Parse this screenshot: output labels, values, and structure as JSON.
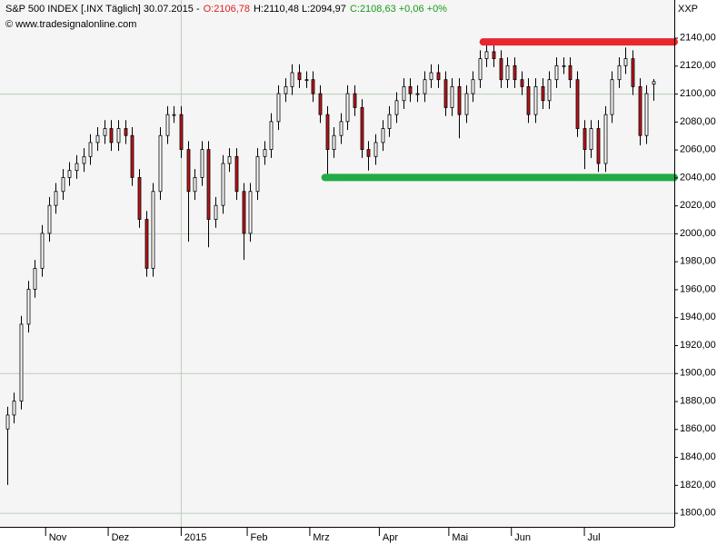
{
  "chart_data": {
    "type": "candlestick",
    "header": [
      {
        "text": "S&P 500 INDEX [.INX  Täglich] 30.07.2015 -",
        "color": "#000000"
      },
      {
        "text": "O:2106,78",
        "color": "#e02020"
      },
      {
        "text": "H:2110,48 L:2094,97",
        "color": "#000000"
      },
      {
        "text": "C:2108,63 +0,06 +0%",
        "color": "#1a9a1a"
      }
    ],
    "source": "© www.tradesignalonline.com",
    "symbol": "XXP",
    "up_color": "#ffffff",
    "down_color": "#c0141a",
    "x": [
      0,
      2,
      4,
      6,
      8,
      10,
      12,
      14,
      16,
      18,
      20,
      22,
      24,
      26,
      28,
      30,
      32,
      34,
      36,
      38,
      40,
      42,
      44,
      46,
      48,
      50,
      52,
      54,
      56,
      58,
      60,
      62,
      64,
      66,
      68,
      70,
      72,
      74,
      76,
      78,
      80,
      82,
      84,
      86,
      88,
      90,
      92,
      94,
      96,
      98,
      100,
      102,
      104,
      106,
      108,
      110,
      112,
      114,
      116,
      118,
      120,
      122,
      124,
      126,
      128,
      130,
      132,
      134,
      136,
      138,
      140,
      142,
      144,
      146,
      148,
      150,
      152,
      154,
      156,
      158,
      160,
      162,
      164,
      166,
      168,
      170,
      172,
      174,
      176,
      178,
      180,
      182,
      184,
      186
    ],
    "open": [
      1860,
      1870,
      1880,
      1935,
      1960,
      1975,
      2000,
      2020,
      2030,
      2040,
      2045,
      2050,
      2055,
      2065,
      2070,
      2075,
      2065,
      2075,
      2070,
      2040,
      2010,
      1975,
      2030,
      2070,
      2085,
      2085,
      2060,
      2030,
      2040,
      2060,
      2010,
      2020,
      2050,
      2055,
      2030,
      2000,
      2030,
      2055,
      2060,
      2080,
      2100,
      2105,
      2115,
      2110,
      2110,
      2100,
      2085,
      2060,
      2070,
      2080,
      2100,
      2090,
      2060,
      2055,
      2065,
      2075,
      2085,
      2095,
      2105,
      2100,
      2100,
      2110,
      2115,
      2110,
      2090,
      2105,
      2085,
      2100,
      2110,
      2125,
      2130,
      2125,
      2110,
      2120,
      2110,
      2105,
      2085,
      2105,
      2095,
      2110,
      2120,
      2120,
      2110,
      2075,
      2060,
      2075,
      2050,
      2085,
      2110,
      2120,
      2125,
      2105,
      2070,
      2106.78
    ],
    "high": [
      1876,
      1886,
      1941,
      1966,
      1981,
      2006,
      2026,
      2036,
      2046,
      2051,
      2056,
      2061,
      2071,
      2076,
      2081,
      2081,
      2081,
      2081,
      2076,
      2046,
      2016,
      2036,
      2076,
      2091,
      2091,
      2091,
      2066,
      2046,
      2066,
      2066,
      2026,
      2056,
      2061,
      2061,
      2036,
      2036,
      2061,
      2066,
      2086,
      2106,
      2111,
      2121,
      2121,
      2116,
      2116,
      2106,
      2091,
      2076,
      2086,
      2106,
      2106,
      2096,
      2066,
      2071,
      2081,
      2091,
      2101,
      2111,
      2111,
      2106,
      2116,
      2121,
      2121,
      2116,
      2111,
      2111,
      2106,
      2116,
      2131,
      2135,
      2135,
      2131,
      2126,
      2126,
      2116,
      2111,
      2111,
      2111,
      2116,
      2126,
      2126,
      2126,
      2116,
      2081,
      2081,
      2081,
      2091,
      2116,
      2126,
      2133,
      2131,
      2111,
      2106,
      2110.48
    ],
    "low": [
      1820,
      1864,
      1874,
      1929,
      1954,
      1969,
      1994,
      2014,
      2024,
      2034,
      2039,
      2044,
      2049,
      2059,
      2064,
      2059,
      2059,
      2064,
      2034,
      2004,
      1969,
      1969,
      2024,
      2064,
      2079,
      2054,
      1994,
      2024,
      2034,
      1990,
      2004,
      2014,
      2044,
      2024,
      1981,
      1994,
      2024,
      2049,
      2054,
      2074,
      2094,
      2099,
      2104,
      2104,
      2094,
      2079,
      2042,
      2054,
      2064,
      2074,
      2084,
      2054,
      2045,
      2049,
      2059,
      2069,
      2079,
      2089,
      2094,
      2094,
      2094,
      2104,
      2104,
      2084,
      2084,
      2068,
      2079,
      2094,
      2104,
      2119,
      2119,
      2104,
      2104,
      2104,
      2099,
      2079,
      2079,
      2089,
      2089,
      2104,
      2114,
      2104,
      2069,
      2046,
      2054,
      2044,
      2044,
      2079,
      2104,
      2114,
      2099,
      2063,
      2064,
      2094.97
    ],
    "close": [
      1870,
      1880,
      1935,
      1960,
      1975,
      2000,
      2020,
      2030,
      2040,
      2045,
      2050,
      2055,
      2065,
      2070,
      2075,
      2065,
      2075,
      2070,
      2040,
      2010,
      1975,
      2030,
      2070,
      2085,
      2085,
      2060,
      2030,
      2040,
      2060,
      2010,
      2020,
      2050,
      2055,
      2030,
      2000,
      2030,
      2055,
      2060,
      2080,
      2100,
      2105,
      2115,
      2110,
      2110,
      2100,
      2085,
      2060,
      2070,
      2080,
      2100,
      2090,
      2060,
      2055,
      2065,
      2075,
      2085,
      2095,
      2105,
      2100,
      2100,
      2110,
      2115,
      2110,
      2090,
      2105,
      2085,
      2100,
      2110,
      2125,
      2130,
      2125,
      2110,
      2120,
      2110,
      2105,
      2085,
      2105,
      2095,
      2110,
      2120,
      2120,
      2110,
      2075,
      2060,
      2075,
      2050,
      2085,
      2110,
      2120,
      2125,
      2105,
      2070,
      2100,
      2108.63
    ],
    "xlim": [
      -2,
      192
    ],
    "xticks": [
      {
        "value": 11,
        "label": "Nov"
      },
      {
        "value": 29,
        "label": "Dez"
      },
      {
        "value": 50,
        "label": "2015"
      },
      {
        "value": 69,
        "label": "Feb"
      },
      {
        "value": 87,
        "label": "Mrz"
      },
      {
        "value": 107,
        "label": "Apr"
      },
      {
        "value": 127,
        "label": "Mai"
      },
      {
        "value": 145,
        "label": "Jun"
      },
      {
        "value": 166,
        "label": "Jul"
      }
    ],
    "xgrid": [
      50
    ],
    "ylim": [
      1790,
      2167
    ],
    "yticks": [
      {
        "value": 1800,
        "label": "1800,00"
      },
      {
        "value": 1820,
        "label": "1820,00"
      },
      {
        "value": 1840,
        "label": "1840,00"
      },
      {
        "value": 1860,
        "label": "1860,00"
      },
      {
        "value": 1880,
        "label": "1880,00"
      },
      {
        "value": 1900,
        "label": "1900,00"
      },
      {
        "value": 1920,
        "label": "1920,00"
      },
      {
        "value": 1940,
        "label": "1940,00"
      },
      {
        "value": 1960,
        "label": "1960,00"
      },
      {
        "value": 1980,
        "label": "1980,00"
      },
      {
        "value": 2000,
        "label": "2000,00"
      },
      {
        "value": 2020,
        "label": "2020,00"
      },
      {
        "value": 2040,
        "label": "2040,00"
      },
      {
        "value": 2060,
        "label": "2060,00"
      },
      {
        "value": 2080,
        "label": "2080,00"
      },
      {
        "value": 2100,
        "label": "2100,00"
      },
      {
        "value": 2120,
        "label": "2120,00"
      },
      {
        "value": 2140,
        "label": "2140,00"
      }
    ],
    "ygrid": [
      1800,
      1900,
      2000,
      2100
    ],
    "levels": [
      {
        "value": 2137,
        "from": 137,
        "color": "#e8262d"
      },
      {
        "value": 2040,
        "from": 91.5,
        "color": "#22aa44"
      }
    ]
  }
}
